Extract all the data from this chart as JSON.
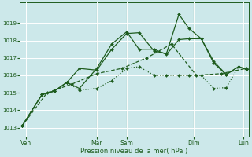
{
  "xlabel": "Pression niveau de la mer( hPa )",
  "background_color": "#cce8ea",
  "grid_color": "#ffffff",
  "line_color": "#1e5c1e",
  "ylim": [
    1012.5,
    1020.2
  ],
  "yticks": [
    1013,
    1014,
    1015,
    1016,
    1017,
    1018,
    1019
  ],
  "xlim": [
    -0.1,
    9.1
  ],
  "xtick_labels": [
    "Ven",
    "Mar",
    "Sam",
    "Dim",
    "Lun"
  ],
  "xtick_positions": [
    0.15,
    3.0,
    4.2,
    6.9,
    8.9
  ],
  "vline_positions": [
    3.0,
    4.2,
    6.9,
    8.9
  ],
  "line1_smooth": {
    "x": [
      0,
      1,
      2,
      3,
      4,
      5,
      6,
      7,
      8,
      9
    ],
    "y": [
      1013.1,
      1015.0,
      1015.5,
      1016.1,
      1016.4,
      1017.0,
      1017.8,
      1016.0,
      1016.1,
      1016.4
    ],
    "style": "--",
    "marker": "D",
    "markersize": 2.0,
    "lw": 0.9
  },
  "line2_jagged": {
    "x": [
      0,
      0.8,
      1.3,
      1.8,
      2.3,
      3.0,
      3.6,
      4.2,
      4.7,
      5.3,
      5.8,
      6.3,
      6.7,
      7.2,
      7.7,
      8.2,
      8.7,
      9.0
    ],
    "y": [
      1013.1,
      1014.9,
      1015.1,
      1015.6,
      1016.4,
      1016.3,
      1017.5,
      1018.4,
      1018.45,
      1017.4,
      1017.25,
      1019.5,
      1018.7,
      1018.1,
      1016.7,
      1016.05,
      1016.5,
      1016.35
    ],
    "style": "-",
    "marker": "D",
    "markersize": 2.0,
    "lw": 0.9
  },
  "line3_mid": {
    "x": [
      0,
      0.8,
      1.3,
      1.8,
      2.3,
      3.0,
      3.6,
      4.2,
      4.7,
      5.3,
      5.8,
      6.3,
      6.7,
      7.2,
      7.7,
      8.2,
      8.7,
      9.0
    ],
    "y": [
      1013.1,
      1014.9,
      1015.1,
      1015.6,
      1015.25,
      1016.4,
      1017.8,
      1018.5,
      1017.5,
      1017.5,
      1017.2,
      1018.05,
      1018.1,
      1018.1,
      1016.8,
      1016.05,
      1016.5,
      1016.35
    ],
    "style": "-",
    "marker": "D",
    "markersize": 2.0,
    "lw": 0.9
  },
  "line4_dotted": {
    "x": [
      0,
      0.8,
      1.3,
      1.8,
      2.3,
      3.0,
      3.6,
      4.2,
      4.7,
      5.3,
      5.8,
      6.3,
      6.7,
      7.2,
      7.7,
      8.2,
      8.7,
      9.0
    ],
    "y": [
      1013.1,
      1014.9,
      1015.1,
      1015.6,
      1015.15,
      1015.25,
      1015.7,
      1016.4,
      1016.5,
      1016.0,
      1016.0,
      1016.0,
      1016.0,
      1016.0,
      1015.25,
      1015.3,
      1016.5,
      1016.35
    ],
    "style": ":",
    "marker": "D",
    "markersize": 2.0,
    "lw": 0.9
  }
}
